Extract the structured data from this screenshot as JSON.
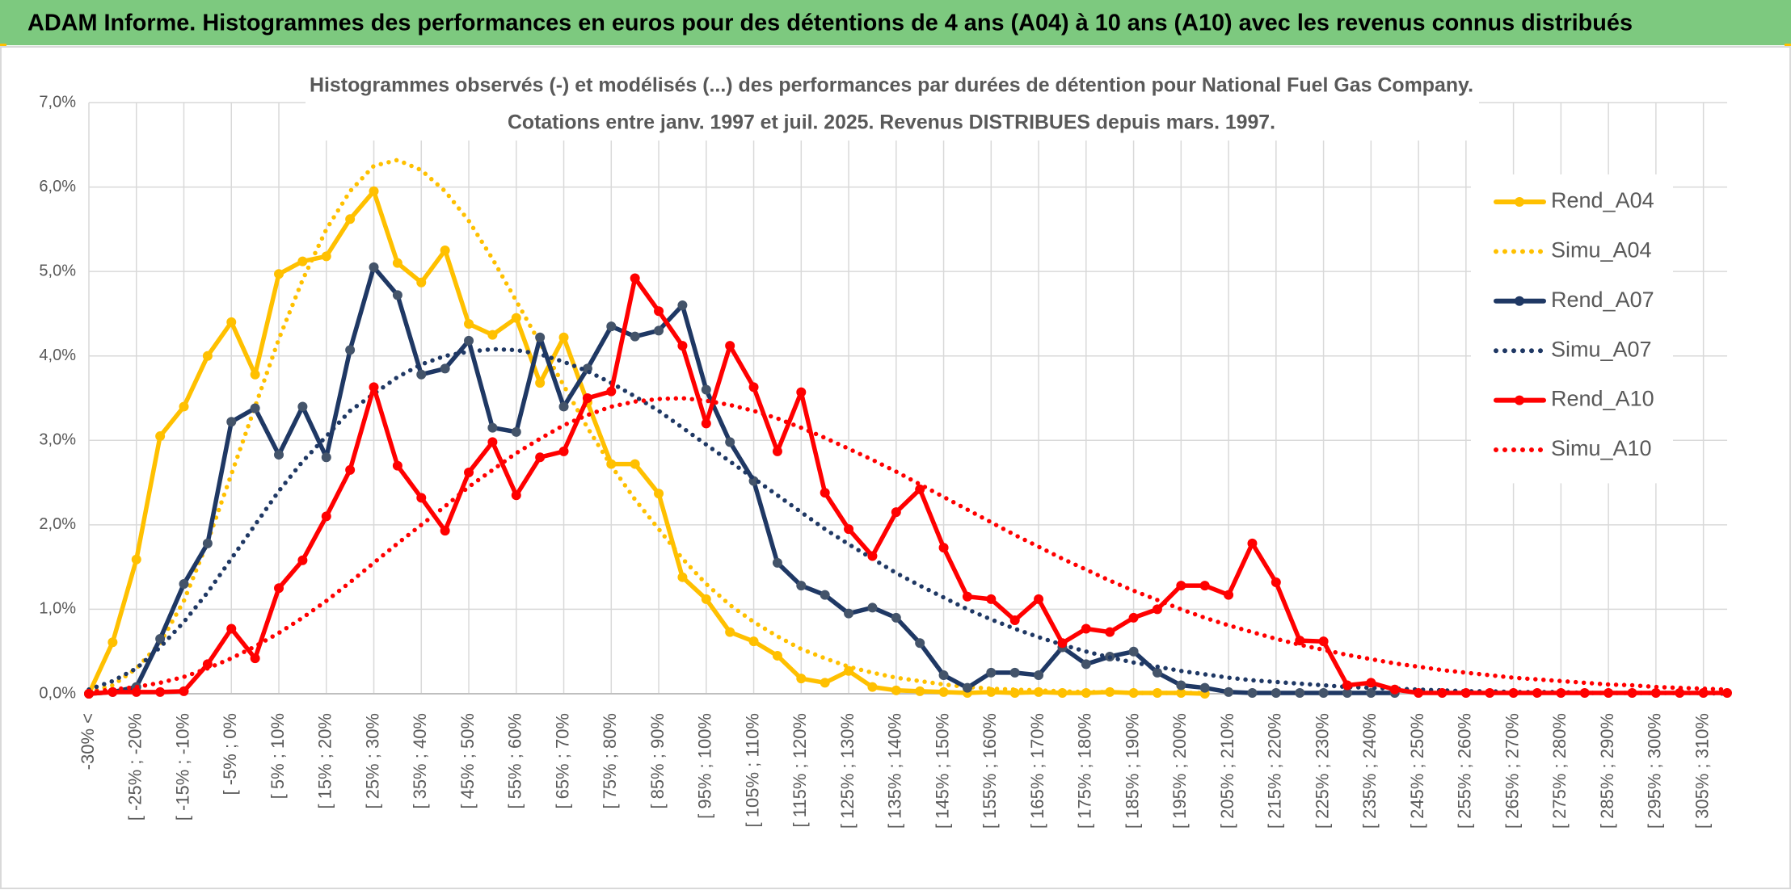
{
  "chart_data": {
    "type": "line",
    "title": "ADAM Informe. Histogrammes des performances en euros pour des détentions de 4 ans (A04) à 10 ans (A10) avec les revenus connus distribués",
    "subtitle": [
      "Histogrammes observés (-) et modélisés (...) des performances par durées de détention pour National Fuel Gas Company.",
      "Cotations entre janv. 1997 et juil. 2025. Revenus DISTRIBUES depuis mars. 1997."
    ],
    "categories": [
      "-30% <",
      null,
      "[ -25% ; -20%",
      null,
      "[ -15% ; -10%",
      null,
      "[ -5% ; 0%",
      null,
      "[ 5% ; 10%",
      null,
      "[ 15% ; 20%",
      null,
      "[ 25% ; 30%",
      null,
      "[ 35% ; 40%",
      null,
      "[ 45% ; 50%",
      null,
      "[ 55% ; 60%",
      null,
      "[ 65% ; 70%",
      null,
      "[ 75% ; 80%",
      null,
      "[ 85% ; 90%",
      null,
      "[ 95% ; 100%",
      null,
      "[ 105% ; 110%",
      null,
      "[ 115% ; 120%",
      null,
      "[ 125% ; 130%",
      null,
      "[ 135% ; 140%",
      null,
      "[ 145% ; 150%",
      null,
      "[ 155% ; 160%",
      null,
      "[ 165% ; 170%",
      null,
      "[ 175% ; 180%",
      null,
      "[ 185% ; 190%",
      null,
      "[ 195% ; 200%",
      null,
      "[ 205% ; 210%",
      null,
      "[ 215% ; 220%",
      null,
      "[ 225% ; 230%",
      null,
      "[ 235% ; 240%",
      null,
      "[ 245% ; 250%",
      null,
      "[ 255% ; 260%",
      null,
      "[ 265% ; 270%",
      null,
      "[ 275% ; 280%",
      null,
      "[ 285% ; 290%",
      null,
      "[ 295% ; 300%",
      null,
      "[ 305% ; 310%",
      null
    ],
    "series": [
      {
        "name": "Rend_A04",
        "color": "#ffc000",
        "style": "solid",
        "markers": true,
        "values": [
          0,
          0.61,
          1.59,
          3.05,
          3.4,
          4.0,
          4.4,
          3.78,
          4.97,
          5.12,
          5.18,
          5.62,
          5.95,
          5.1,
          4.87,
          5.25,
          4.38,
          4.25,
          4.45,
          3.68,
          4.22,
          3.45,
          2.72,
          2.72,
          2.37,
          1.38,
          1.12,
          0.73,
          0.62,
          0.45,
          0.18,
          0.13,
          0.27,
          0.08,
          0.04,
          0.03,
          0.02,
          0.01,
          0.02,
          0.01,
          0.02,
          0.01,
          0.01,
          0.02,
          0.01,
          0.01,
          0.01,
          0,
          null,
          null,
          null,
          null,
          null,
          null,
          null,
          null,
          null,
          null,
          null,
          null,
          null,
          null,
          null,
          null,
          null,
          null,
          null,
          null,
          null,
          null
        ]
      },
      {
        "name": "Simu_A04",
        "color": "#ffc000",
        "style": "dotted",
        "markers": false,
        "values": [
          0.02,
          0.1,
          0.3,
          0.6,
          1.1,
          1.8,
          2.6,
          3.4,
          4.2,
          4.9,
          5.5,
          5.95,
          6.25,
          6.32,
          6.2,
          5.95,
          5.6,
          5.15,
          4.65,
          4.15,
          3.65,
          3.15,
          2.7,
          2.3,
          1.95,
          1.6,
          1.3,
          1.05,
          0.85,
          0.68,
          0.53,
          0.42,
          0.32,
          0.25,
          0.19,
          0.15,
          0.11,
          0.08,
          0.06,
          0.05,
          0.04,
          0.03,
          0.02,
          0.02,
          0.01,
          0.01,
          0.01,
          0.01,
          null,
          null,
          null,
          null,
          null,
          null,
          null,
          null,
          null,
          null,
          null,
          null,
          null,
          null,
          null,
          null,
          null,
          null,
          null,
          null,
          null,
          null
        ]
      },
      {
        "name": "Rend_A07",
        "color": "#1f3864",
        "style": "solid",
        "markers": true,
        "values": [
          0,
          0.02,
          0.08,
          0.65,
          1.3,
          1.78,
          3.22,
          3.38,
          2.83,
          3.4,
          2.8,
          4.07,
          5.05,
          4.72,
          3.78,
          3.85,
          4.18,
          3.15,
          3.1,
          4.22,
          3.4,
          3.85,
          4.35,
          4.23,
          4.3,
          4.6,
          3.6,
          2.98,
          2.52,
          1.55,
          1.28,
          1.17,
          0.95,
          1.02,
          0.9,
          0.6,
          0.22,
          0.07,
          0.25,
          0.25,
          0.22,
          0.55,
          0.35,
          0.44,
          0.5,
          0.25,
          0.1,
          0.07,
          0.02,
          0.01,
          0.01,
          0.01,
          0.01,
          0.01,
          0.01,
          0.01,
          null,
          null,
          null,
          null,
          null,
          null,
          null,
          null,
          null,
          null,
          null,
          null,
          null,
          null
        ]
      },
      {
        "name": "Simu_A07",
        "color": "#1f3864",
        "style": "dotted",
        "markers": false,
        "values": [
          0.05,
          0.15,
          0.3,
          0.55,
          0.85,
          1.2,
          1.6,
          2.0,
          2.4,
          2.75,
          3.05,
          3.35,
          3.55,
          3.75,
          3.9,
          4.0,
          4.05,
          4.08,
          4.07,
          4.02,
          3.93,
          3.82,
          3.68,
          3.52,
          3.35,
          3.15,
          2.95,
          2.75,
          2.55,
          2.35,
          2.15,
          1.95,
          1.77,
          1.6,
          1.43,
          1.28,
          1.14,
          1.0,
          0.88,
          0.77,
          0.67,
          0.58,
          0.5,
          0.43,
          0.37,
          0.32,
          0.27,
          0.23,
          0.19,
          0.16,
          0.14,
          0.12,
          0.1,
          0.08,
          0.07,
          0.06,
          0.05,
          0.04,
          0.03,
          0.03,
          0.02,
          0.02,
          0.02,
          0.01,
          0.01,
          0.01,
          0.01,
          0.01,
          0.01,
          0
        ]
      },
      {
        "name": "Rend_A10",
        "color": "#ff0000",
        "style": "solid",
        "markers": true,
        "values": [
          0,
          0.02,
          0.02,
          0.02,
          0.03,
          0.35,
          0.77,
          0.42,
          1.25,
          1.58,
          2.1,
          2.65,
          3.63,
          2.7,
          2.32,
          1.93,
          2.62,
          2.98,
          2.35,
          2.8,
          2.87,
          3.5,
          3.58,
          4.92,
          4.53,
          4.12,
          3.2,
          4.12,
          3.63,
          2.87,
          3.57,
          2.38,
          1.95,
          1.63,
          2.15,
          2.42,
          1.73,
          1.15,
          1.12,
          0.87,
          1.12,
          0.6,
          0.77,
          0.73,
          0.9,
          1.0,
          1.28,
          1.28,
          1.17,
          1.78,
          1.32,
          0.63,
          0.62,
          0.1,
          0.13,
          0.05,
          0.01,
          0.01,
          0.01,
          0.01,
          0.01,
          0.01,
          0.01,
          0.01,
          0.01,
          0.01,
          0.01,
          0.01,
          0.01,
          0.01
        ]
      },
      {
        "name": "Simu_A10",
        "color": "#ff0000",
        "style": "dotted",
        "markers": false,
        "values": [
          0.02,
          0.05,
          0.08,
          0.13,
          0.2,
          0.3,
          0.42,
          0.56,
          0.72,
          0.9,
          1.1,
          1.32,
          1.55,
          1.78,
          2.0,
          2.22,
          2.45,
          2.65,
          2.85,
          3.02,
          3.18,
          3.3,
          3.4,
          3.46,
          3.49,
          3.5,
          3.47,
          3.42,
          3.35,
          3.26,
          3.15,
          3.03,
          2.9,
          2.77,
          2.63,
          2.48,
          2.33,
          2.18,
          2.03,
          1.88,
          1.74,
          1.6,
          1.47,
          1.34,
          1.22,
          1.11,
          1.0,
          0.9,
          0.81,
          0.73,
          0.65,
          0.58,
          0.52,
          0.46,
          0.41,
          0.36,
          0.32,
          0.28,
          0.25,
          0.22,
          0.19,
          0.17,
          0.15,
          0.13,
          0.11,
          0.1,
          0.08,
          0.07,
          0.06,
          0.05
        ]
      }
    ],
    "ylim": [
      0,
      7
    ],
    "yticks": [
      {
        "value": 0,
        "label": "0,0%"
      },
      {
        "value": 1,
        "label": "1,0%"
      },
      {
        "value": 2,
        "label": "2,0%"
      },
      {
        "value": 3,
        "label": "3,0%"
      },
      {
        "value": 4,
        "label": "4,0%"
      },
      {
        "value": 5,
        "label": "5,0%"
      },
      {
        "value": 6,
        "label": "6,0%"
      },
      {
        "value": 7,
        "label": "7,0%"
      }
    ],
    "grid": true,
    "legend": "right"
  }
}
